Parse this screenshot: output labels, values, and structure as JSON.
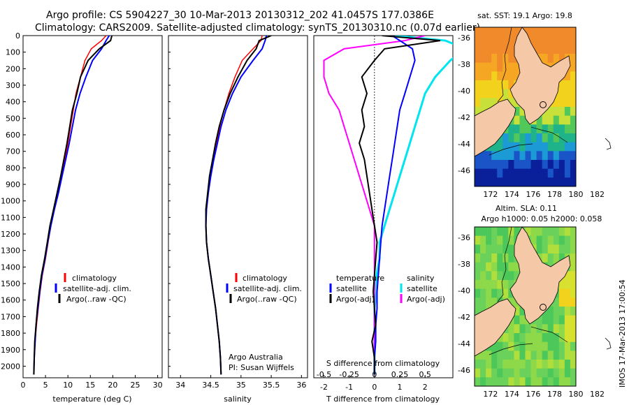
{
  "header": {
    "line1": "Argo profile: CS 5904227_30 10-Mar-2013 20130312_202 41.0457S 177.0386E",
    "line2": "Climatology: CARS2009. Satellite-adjusted climatology: synTS_20130310.nc (0.07d earlier)"
  },
  "colors": {
    "clim": "#ff0000",
    "sat": "#0000ff",
    "argo": "#000000",
    "sal_sat": "#00e5ee",
    "sal_argo": "#ff00ff",
    "land": "#f5c8a8"
  },
  "chart_data": [
    {
      "type": "line",
      "panel": "temperature",
      "xlabel": "temperature (deg C)",
      "xlim": [
        0,
        31
      ],
      "xticks": [
        "0",
        "5",
        "10",
        "15",
        "20",
        "25",
        "30"
      ],
      "ylim": [
        2070,
        0
      ],
      "yticks": [
        "0",
        "100",
        "200",
        "300",
        "400",
        "500",
        "600",
        "700",
        "800",
        "900",
        "1000",
        "1100",
        "1200",
        "1300",
        "1400",
        "1500",
        "1600",
        "1700",
        "1800",
        "1900",
        "2000"
      ],
      "legend": [
        "climatology",
        "satellite-adj. clim.",
        "Argo(..raw -QC)"
      ],
      "series": [
        {
          "name": "climatology",
          "x": [
            18.5,
            17.5,
            15.2,
            13.8,
            12.8,
            11.8,
            11.2,
            10.6,
            10.0,
            9.3,
            8.6,
            7.8,
            7.0,
            6.2,
            5.6,
            5.0,
            4.3,
            3.8,
            3.4,
            3.0,
            2.7,
            2.5,
            2.4
          ],
          "y": [
            0,
            30,
            80,
            150,
            250,
            350,
            450,
            550,
            650,
            750,
            850,
            950,
            1050,
            1150,
            1250,
            1350,
            1450,
            1550,
            1650,
            1750,
            1850,
            1950,
            2050
          ]
        },
        {
          "name": "satellite-adj. clim.",
          "x": [
            19.2,
            18.5,
            17.5,
            15.5,
            14.0,
            12.7,
            11.7,
            11.0,
            10.3,
            9.5,
            8.7,
            7.9,
            7.0,
            6.2,
            5.5,
            4.9,
            4.2,
            3.7,
            3.3,
            2.9,
            2.7,
            2.5,
            2.4
          ],
          "y": [
            0,
            30,
            80,
            150,
            250,
            350,
            450,
            550,
            650,
            750,
            850,
            950,
            1050,
            1150,
            1250,
            1350,
            1450,
            1550,
            1650,
            1750,
            1850,
            1950,
            2050
          ]
        },
        {
          "name": "Argo(..raw -QC)",
          "x": [
            19.8,
            19.5,
            17.0,
            14.5,
            12.8,
            12.0,
            11.0,
            10.4,
            9.8,
            9.1,
            8.4,
            7.6,
            6.8,
            6.0,
            5.4,
            4.8,
            4.1,
            3.6,
            3.2,
            2.9,
            2.6,
            2.5,
            2.4
          ],
          "y": [
            0,
            30,
            80,
            150,
            250,
            350,
            450,
            550,
            650,
            750,
            850,
            950,
            1050,
            1150,
            1250,
            1350,
            1450,
            1550,
            1650,
            1750,
            1850,
            1950,
            2050
          ]
        }
      ]
    },
    {
      "type": "line",
      "panel": "salinity",
      "xlabel": "salinity",
      "xlim": [
        33.8,
        36.1
      ],
      "xticks": [
        "34",
        "34.5",
        "35",
        "35.5",
        "36"
      ],
      "ylim": [
        2070,
        0
      ],
      "legend": [
        "climatology",
        "satellite-adj. clim.",
        "Argo(..raw -QC)"
      ],
      "annotation": [
        "Argo Australia",
        "PI: Susan Wijffels"
      ],
      "series": [
        {
          "name": "climatology",
          "x": [
            35.35,
            35.33,
            35.2,
            35.02,
            34.9,
            34.8,
            34.72,
            34.65,
            34.6,
            34.55,
            34.5,
            34.46,
            34.43,
            34.42,
            34.43,
            34.46,
            34.5,
            34.54,
            34.58,
            34.61,
            34.64,
            34.66,
            34.67
          ],
          "y": [
            0,
            30,
            80,
            150,
            250,
            350,
            450,
            550,
            650,
            750,
            850,
            950,
            1050,
            1150,
            1250,
            1350,
            1450,
            1550,
            1650,
            1750,
            1850,
            1950,
            2050
          ]
        },
        {
          "name": "satellite-adj. clim.",
          "x": [
            35.42,
            35.4,
            35.35,
            35.2,
            35.0,
            34.86,
            34.75,
            34.67,
            34.61,
            34.55,
            34.5,
            34.46,
            34.43,
            34.42,
            34.43,
            34.46,
            34.5,
            34.54,
            34.58,
            34.61,
            34.64,
            34.66,
            34.67
          ],
          "y": [
            0,
            30,
            80,
            150,
            250,
            350,
            450,
            550,
            650,
            750,
            850,
            950,
            1050,
            1150,
            1250,
            1350,
            1450,
            1550,
            1650,
            1750,
            1850,
            1950,
            2050
          ]
        },
        {
          "name": "Argo(..raw -QC)",
          "x": [
            35.5,
            35.3,
            35.25,
            35.1,
            34.95,
            34.82,
            34.72,
            34.64,
            34.58,
            34.53,
            34.48,
            34.45,
            34.42,
            34.42,
            34.43,
            34.46,
            34.5,
            34.54,
            34.58,
            34.61,
            34.64,
            34.66,
            34.67
          ],
          "y": [
            0,
            30,
            80,
            150,
            250,
            350,
            450,
            550,
            650,
            750,
            850,
            950,
            1050,
            1150,
            1250,
            1350,
            1450,
            1550,
            1650,
            1750,
            1850,
            1950,
            2050
          ]
        }
      ]
    },
    {
      "type": "line",
      "panel": "differences",
      "xlabel": "T difference from climatology",
      "xlabel_top": "S difference from climatology",
      "xlim": [
        -2.4,
        3.1
      ],
      "xticks": [
        "-2",
        "-1",
        "0",
        "1",
        "2"
      ],
      "sticks": [
        "-0.5",
        "-0.25",
        "0",
        "0.25",
        "0.5"
      ],
      "ylim": [
        2070,
        0
      ],
      "legend_t_title": "temperature",
      "legend_t": [
        "satellite",
        "Argo(-adj)"
      ],
      "legend_s_title": "salinity",
      "legend_s": [
        "satellite",
        "Argo(-adj)"
      ],
      "series": [
        {
          "name": "satellite",
          "x": [
            0.7,
            1.0,
            1.5,
            1.6,
            1.4,
            1.2,
            1.0,
            0.9,
            0.8,
            0.7,
            0.6,
            0.5,
            0.4,
            0.3,
            0.25,
            0.2,
            0.15,
            0.1,
            0.1,
            0.05,
            0.05,
            0.0,
            0.0
          ],
          "y": [
            0,
            30,
            80,
            150,
            250,
            350,
            450,
            550,
            650,
            750,
            850,
            950,
            1050,
            1150,
            1250,
            1350,
            1450,
            1550,
            1650,
            1750,
            1850,
            1950,
            2050
          ]
        },
        {
          "name": "Argo(-adj)",
          "x": [
            0.3,
            2.6,
            0.4,
            0.0,
            -0.5,
            -0.3,
            -0.5,
            -0.4,
            -0.6,
            -0.4,
            -0.3,
            -0.2,
            -0.1,
            0.0,
            0.1,
            0.05,
            0.0,
            -0.05,
            0.0,
            0.05,
            -0.1,
            0.0,
            0.0
          ],
          "y": [
            0,
            30,
            80,
            150,
            250,
            350,
            450,
            550,
            650,
            750,
            850,
            950,
            1050,
            1150,
            1250,
            1350,
            1450,
            1550,
            1650,
            1750,
            1850,
            1950,
            2050
          ]
        },
        {
          "name": "salinity satellite",
          "x": [
            0.2,
            0.7,
            0.9,
            0.75,
            0.6,
            0.5,
            0.45,
            0.4,
            0.35,
            0.3,
            0.25,
            0.2,
            0.15,
            0.1,
            0.05,
            0.05,
            0.02,
            0.02,
            0.0,
            0.0,
            0.0,
            0.0,
            0.0
          ],
          "y": [
            0,
            30,
            80,
            150,
            250,
            350,
            450,
            550,
            650,
            750,
            850,
            950,
            1050,
            1150,
            1250,
            1350,
            1450,
            1550,
            1650,
            1750,
            1850,
            1950,
            2050
          ]
        },
        {
          "name": "salinity Argo(-adj)",
          "x": [
            0.5,
            0.3,
            -0.3,
            -0.5,
            -0.5,
            -0.45,
            -0.35,
            -0.3,
            -0.25,
            -0.2,
            -0.15,
            -0.1,
            -0.05,
            0.0,
            0.0,
            0.0,
            0.0,
            0.0,
            0.0,
            0.0,
            0.0,
            0.0,
            0.0
          ],
          "y": [
            0,
            30,
            80,
            150,
            250,
            350,
            450,
            550,
            650,
            750,
            850,
            950,
            1050,
            1150,
            1250,
            1350,
            1450,
            1550,
            1650,
            1750,
            1850,
            1950,
            2050
          ]
        }
      ]
    }
  ],
  "maps": {
    "sst": {
      "title": "sat. SST: 19.1 Argo: 19.8",
      "xticks": [
        "172",
        "174",
        "176",
        "178",
        "180",
        "182"
      ],
      "yticks": [
        "-36",
        "-38",
        "-40",
        "-42",
        "-44",
        "-46"
      ],
      "profile": {
        "lon": 177.04,
        "lat": -41.05
      }
    },
    "sla": {
      "title1": "Altim. SLA: 0.11",
      "title2": "Argo h1000: 0.05 h2000: 0.058",
      "xticks": [
        "172",
        "174",
        "176",
        "178",
        "180",
        "182"
      ],
      "yticks": [
        "-36",
        "-38",
        "-40",
        "-42",
        "-44",
        "-46"
      ],
      "profile": {
        "lon": 177.04,
        "lat": -41.05
      }
    }
  },
  "footer": {
    "stamp": "IMOS 17-Mar-2013 17:00:54"
  }
}
